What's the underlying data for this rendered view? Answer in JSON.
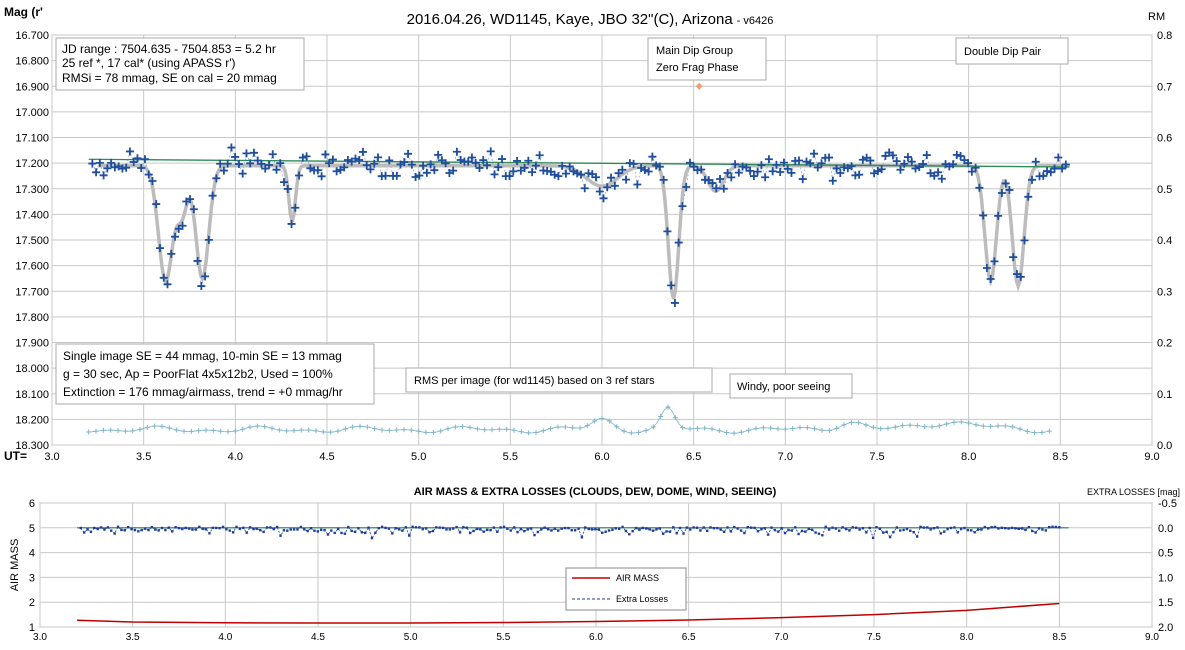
{
  "colors": {
    "data_points": "#1f4e9c",
    "fit": "#bcbcbc",
    "model": "#2e8b57",
    "rms": "#7fb5c9",
    "airmass": "#c00000",
    "extra": "#1f3d9c",
    "extra_zero": "#2a7f62",
    "grid": "#c8c8c8",
    "marker_orange": "#f0a070"
  },
  "chart_data": [
    {
      "type": "scatter",
      "title": "2016.04.26,  WD1145, Kaye, JBO 32\"(C), Arizona",
      "title_suffix": "- v6426",
      "ylabel": "Mag (r'",
      "y2label": "RM",
      "xlabel": "UT=",
      "xlim": [
        3.0,
        9.0
      ],
      "ylim": [
        16.7,
        18.3
      ],
      "y_inverted": true,
      "y2lim": [
        0.0,
        0.8
      ],
      "grid": true,
      "x_ticks": [
        "3.0",
        "3.5",
        "4.0",
        "4.5",
        "5.0",
        "5.5",
        "6.0",
        "6.5",
        "7.0",
        "7.5",
        "8.0",
        "8.5",
        "9.0"
      ],
      "y_ticks": [
        "16.700",
        "16.800",
        "16.900",
        "17.000",
        "17.100",
        "17.200",
        "17.300",
        "17.400",
        "17.500",
        "17.600",
        "17.700",
        "17.800",
        "17.900",
        "18.000",
        "18.100",
        "18.200",
        "18.300"
      ],
      "y2_ticks": [
        "0.8",
        "0.7",
        "0.6",
        "0.5",
        "0.4",
        "0.3",
        "0.2",
        "0.1",
        "0.0"
      ],
      "annotations": {
        "info_box": [
          "JD range  : 7504.635 - 7504.853  = 5.2 hr",
          "  25 ref *, 17 cal* (using APASS r')",
          "RMSi = 78 mmag, SE on cal = 20 mmag"
        ],
        "main_dip": [
          "Main Dip Group",
          "Zero Frag Phase"
        ],
        "double_dip": "Double Dip Pair",
        "stats_box": [
          "Single image SE = 44 mmag, 10-min SE = 13 mmag",
          "g = 30 sec, Ap = PoorFlat 4x5x12b2, Used = 100%",
          "Extinction = 176 mmag/airmass, trend = +0 mmag/hr"
        ],
        "rms_label": "RMS per image (for wd1145) based on 3 ref stars",
        "windy_label": "Windy, poor seeing"
      },
      "zero_phase_marker": {
        "x": 6.53,
        "y": 16.9
      },
      "series": [
        {
          "name": "Fit",
          "kind": "dip_model",
          "baseline": 17.21,
          "dips": [
            {
              "t": 3.62,
              "d": 0.45,
              "w": 0.055
            },
            {
              "t": 3.82,
              "d": 0.44,
              "w": 0.05
            },
            {
              "t": 3.71,
              "d": 0.18,
              "w": 0.04
            },
            {
              "t": 4.31,
              "d": 0.22,
              "w": 0.025
            },
            {
              "t": 6.0,
              "d": 0.08,
              "w": 0.12
            },
            {
              "t": 6.39,
              "d": 0.52,
              "w": 0.04
            },
            {
              "t": 6.62,
              "d": 0.1,
              "w": 0.06
            },
            {
              "t": 8.12,
              "d": 0.45,
              "w": 0.045
            },
            {
              "t": 8.27,
              "d": 0.47,
              "w": 0.045
            }
          ]
        },
        {
          "name": "Model",
          "kind": "linear",
          "x": [
            3.2,
            8.55
          ],
          "y": [
            17.185,
            17.215
          ]
        },
        {
          "name": "RMS per image",
          "kind": "rms",
          "x_range": [
            3.2,
            8.45
          ],
          "level": 0.03,
          "bumps": [
            {
              "t": 6.36,
              "a": 0.04,
              "w": 0.05
            },
            {
              "t": 6.0,
              "a": 0.02,
              "w": 0.08
            },
            {
              "t": 7.35,
              "a": 0.015,
              "w": 0.1
            },
            {
              "t": 7.9,
              "a": 0.015,
              "w": 0.2
            }
          ]
        },
        {
          "name": "wd1145",
          "kind": "observations",
          "x_range": [
            3.22,
            8.53
          ],
          "count": 260,
          "scatter": 0.045
        }
      ]
    },
    {
      "type": "line",
      "title": "AIR MASS & EXTRA LOSSES (CLOUDS, DEW, DOME, WIND, SEEING)",
      "ylabel": "AIR MASS",
      "y2label": "EXTRA LOSSES [mag]",
      "xlim": [
        3.0,
        9.0
      ],
      "ylim": [
        1,
        6
      ],
      "y2lim": [
        -0.5,
        2.0
      ],
      "y2_inverted": true,
      "grid": true,
      "x_ticks": [
        "3.0",
        "3.5",
        "4.0",
        "4.5",
        "5.0",
        "5.5",
        "6.0",
        "6.5",
        "7.0",
        "7.5",
        "8.0",
        "8.5",
        "9.0"
      ],
      "y_ticks": [
        "6",
        "5",
        "4",
        "3",
        "2",
        "1"
      ],
      "y2_ticks": [
        "-0.5",
        "0.0",
        "0.5",
        "1.0",
        "1.5",
        "2.0"
      ],
      "legend": {
        "position": "center-bottom",
        "items": [
          "AIR MASS",
          "Extra Losses"
        ]
      },
      "series": [
        {
          "name": "AIR MASS",
          "x": [
            3.2,
            3.5,
            4.0,
            4.5,
            5.0,
            5.5,
            6.0,
            6.5,
            7.0,
            7.5,
            8.0,
            8.5
          ],
          "y": [
            1.27,
            1.2,
            1.17,
            1.16,
            1.16,
            1.18,
            1.22,
            1.28,
            1.38,
            1.5,
            1.67,
            1.95
          ]
        },
        {
          "name": "Extra Losses",
          "x_range": [
            3.22,
            8.5
          ],
          "count": 290,
          "level": 0.0,
          "scatter": 0.12
        },
        {
          "name": "Zero",
          "x": [
            3.2,
            8.55
          ],
          "y": [
            0.0,
            0.0
          ]
        }
      ]
    }
  ]
}
